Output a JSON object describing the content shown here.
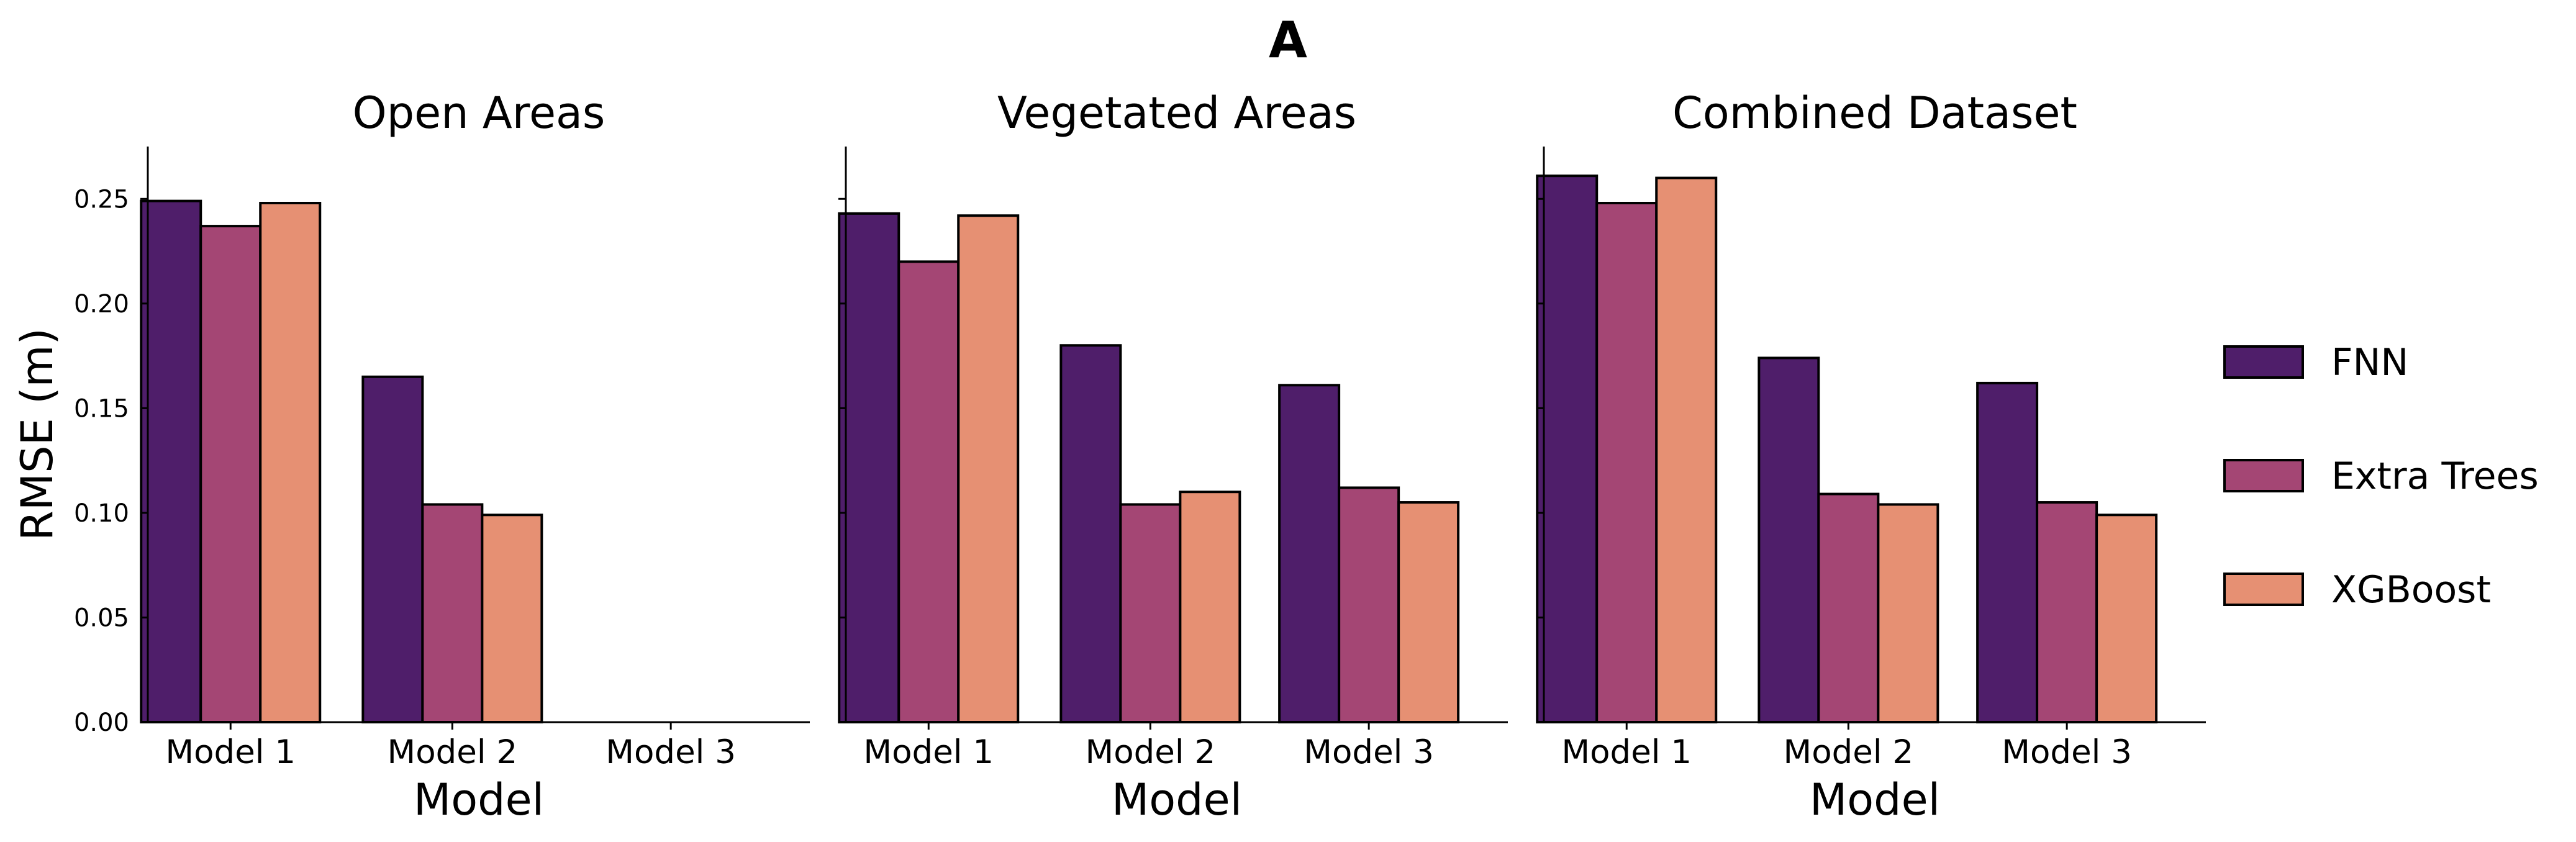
{
  "figure_title": "A",
  "chart_data": [
    {
      "type": "bar",
      "title": "Open Areas",
      "xlabel": "Model",
      "ylabel": "RMSE (m)",
      "categories": [
        "Model 1",
        "Model 2",
        "Model 3"
      ],
      "series": [
        {
          "name": "FNN",
          "values": [
            0.249,
            0.165,
            null
          ]
        },
        {
          "name": "Extra Trees",
          "values": [
            0.237,
            0.104,
            null
          ]
        },
        {
          "name": "XGBoost",
          "values": [
            0.248,
            0.099,
            null
          ]
        }
      ],
      "ylim": [
        0,
        0.275
      ],
      "yticks": [
        "0.00",
        "0.05",
        "0.10",
        "0.15",
        "0.20",
        "0.25"
      ],
      "grid": false
    },
    {
      "type": "bar",
      "title": "Vegetated Areas",
      "xlabel": "Model",
      "categories": [
        "Model 1",
        "Model 2",
        "Model 3"
      ],
      "series": [
        {
          "name": "FNN",
          "values": [
            0.243,
            0.18,
            0.161
          ]
        },
        {
          "name": "Extra Trees",
          "values": [
            0.22,
            0.104,
            0.112
          ]
        },
        {
          "name": "XGBoost",
          "values": [
            0.242,
            0.11,
            0.105
          ]
        }
      ],
      "ylim": [
        0,
        0.275
      ],
      "grid": false
    },
    {
      "type": "bar",
      "title": "Combined Dataset",
      "xlabel": "Model",
      "categories": [
        "Model 1",
        "Model 2",
        "Model 3"
      ],
      "series": [
        {
          "name": "FNN",
          "values": [
            0.261,
            0.174,
            0.162
          ]
        },
        {
          "name": "Extra Trees",
          "values": [
            0.248,
            0.109,
            0.105
          ]
        },
        {
          "name": "XGBoost",
          "values": [
            0.26,
            0.104,
            0.099
          ]
        }
      ],
      "ylim": [
        0,
        0.275
      ],
      "grid": false
    }
  ],
  "legend": {
    "position": "right",
    "entries": [
      "FNN",
      "Extra Trees",
      "XGBoost"
    ]
  },
  "colors": {
    "FNN": "#4f1e6a",
    "Extra Trees": "#a44674",
    "XGBoost": "#e69073",
    "edge": "#000000"
  }
}
